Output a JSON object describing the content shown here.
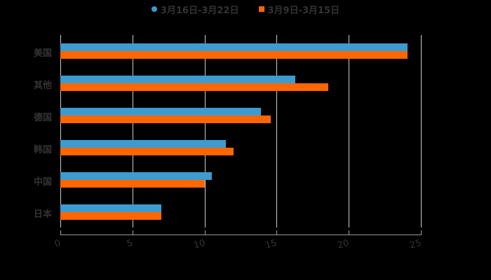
{
  "chart_data": {
    "type": "bar",
    "orientation": "horizontal",
    "title": "",
    "xlabel": "",
    "ylabel": "",
    "categories": [
      "美国",
      "其他",
      "德国",
      "韩国",
      "中国",
      "日本"
    ],
    "series": [
      {
        "name": "3月16日-3月22日",
        "color": "#3C9BD0",
        "values": [
          24.1,
          16.3,
          13.9,
          11.5,
          10.5,
          7.0
        ]
      },
      {
        "name": "3月9日-3月15日",
        "color": "#FF6600",
        "values": [
          24.1,
          18.6,
          14.6,
          12.0,
          10.0,
          7.0
        ]
      }
    ],
    "xlim": [
      0,
      25
    ],
    "xticks": [
      "0",
      "5",
      "10",
      "15",
      "20",
      "25"
    ],
    "grid": true,
    "legend_position": "top"
  },
  "legend": [
    {
      "label": "3月16日-3月22日",
      "color": "#3C9BD0",
      "shape": "circle"
    },
    {
      "label": "3月9日-3月15日",
      "color": "#FF6600",
      "shape": "square"
    }
  ],
  "colors": {
    "background": "#000000",
    "text": "#333333",
    "grid": "#cccccc",
    "axis": "#999999"
  }
}
